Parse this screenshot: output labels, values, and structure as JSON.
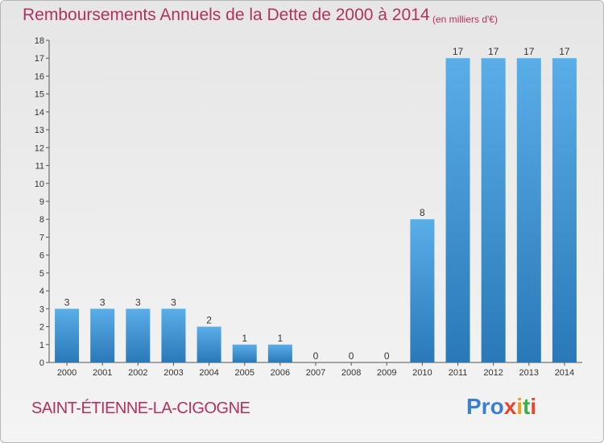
{
  "header": {
    "title": "Remboursements Annuels de la Dette de 2000 à 2014",
    "unit": "(en milliers d'€)"
  },
  "footer": {
    "commune": "SAINT-ÉTIENNE-LA-CIGOGNE",
    "logo_parts": [
      "Pro",
      "x",
      "i",
      "t",
      "i"
    ]
  },
  "colors": {
    "title": "#b5305f",
    "bar_top": "#5aaee8",
    "bar_bottom": "#2a78b8"
  },
  "chart_data": {
    "type": "bar",
    "categories": [
      "2000",
      "2001",
      "2002",
      "2003",
      "2004",
      "2005",
      "2006",
      "2007",
      "2008",
      "2009",
      "2010",
      "2011",
      "2012",
      "2013",
      "2014"
    ],
    "values": [
      3,
      3,
      3,
      3,
      2,
      1,
      1,
      0,
      0,
      0,
      8,
      17,
      17,
      17,
      17
    ],
    "data_labels": [
      "3",
      "3",
      "3",
      "3",
      "2",
      "1",
      "1",
      "0",
      "0",
      "0",
      "8",
      "17",
      "17",
      "17",
      "17"
    ],
    "title": "Remboursements Annuels de la Dette de 2000 à 2014",
    "xlabel": "",
    "ylabel": "",
    "ylim": [
      0,
      18
    ],
    "yticks": [
      "0",
      "1",
      "2",
      "3",
      "4",
      "5",
      "6",
      "7",
      "8",
      "9",
      "10",
      "11",
      "12",
      "13",
      "14",
      "15",
      "16",
      "17",
      "18"
    ],
    "grid": false,
    "legend": "none"
  }
}
